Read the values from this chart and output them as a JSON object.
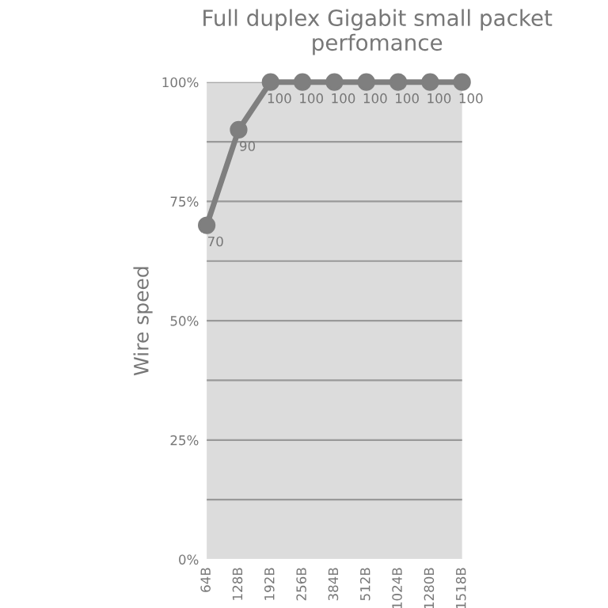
{
  "chart_data": {
    "type": "line",
    "title": "Full duplex Gigabit small packet perfomance",
    "ylabel": "Wire speed",
    "categories": [
      "64B",
      "128B",
      "192B",
      "256B",
      "384B",
      "512B",
      "1024B",
      "1280B",
      "1518B"
    ],
    "series": [
      {
        "color": "#7f7f7f",
        "values": [
          70,
          90,
          100,
          100,
          100,
          100,
          100,
          100,
          100
        ]
      }
    ],
    "ylim": [
      0,
      100
    ],
    "yticks": [
      {
        "value": 0,
        "label": "0%"
      },
      {
        "value": 12.5,
        "label": null
      },
      {
        "value": 25,
        "label": "25%"
      },
      {
        "value": 37.5,
        "label": null
      },
      {
        "value": 50,
        "label": "50%"
      },
      {
        "value": 62.5,
        "label": null
      },
      {
        "value": 75,
        "label": "75%"
      },
      {
        "value": 87.5,
        "label": null
      },
      {
        "value": 100,
        "label": "100%"
      }
    ],
    "grid": "y",
    "marker": "circle",
    "line_style": "solid",
    "data_labels": true,
    "legend": false
  }
}
